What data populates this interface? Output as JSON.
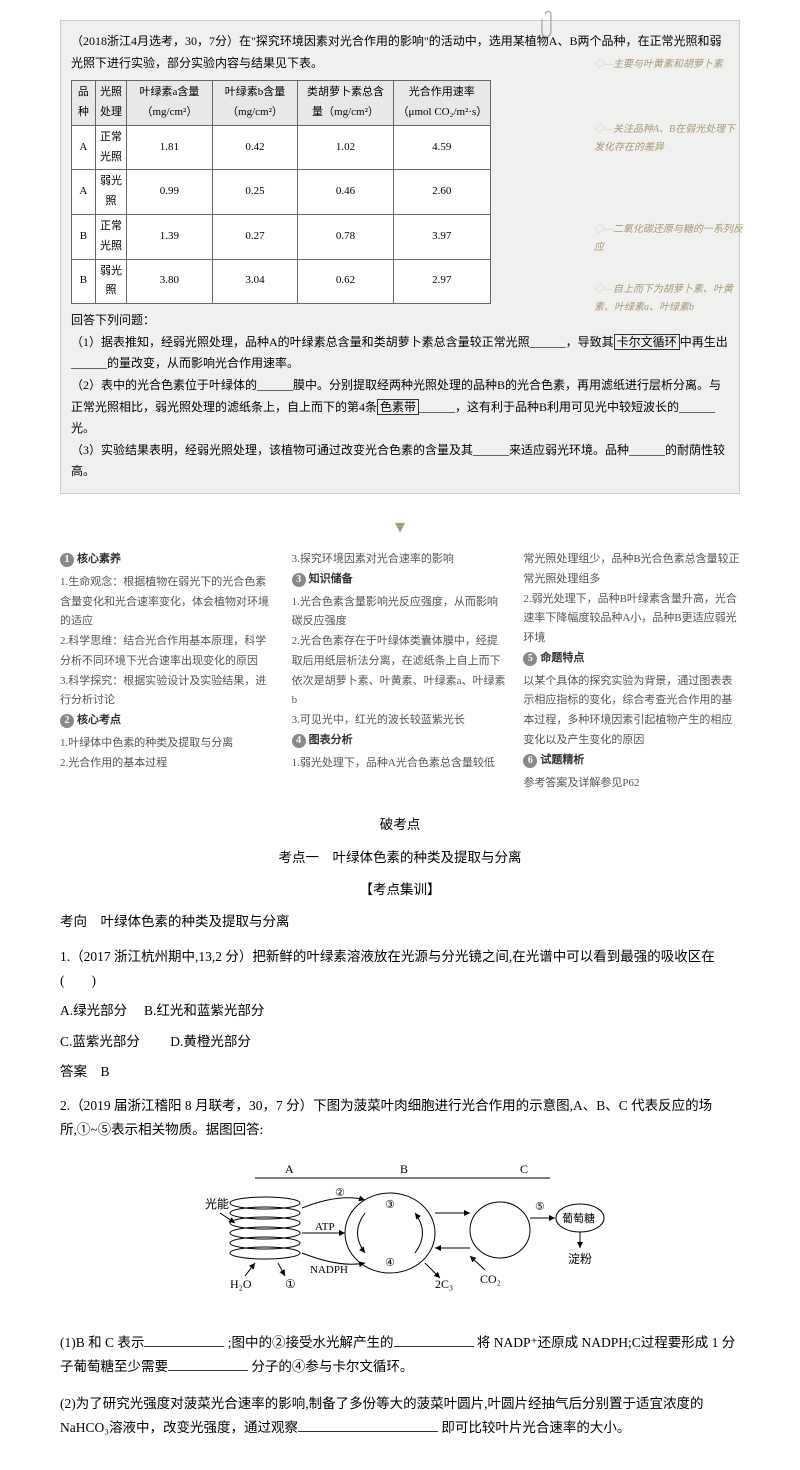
{
  "examBox": {
    "intro": "（2018浙江4月选考，30，7分）在\"探究环境因素对光合作用的影响\"的活动中，选用某植物A、B两个品种，在正常光照和弱光照下进行实验，部分实验内容与结果见下表。",
    "table": {
      "headers": [
        "品种",
        "光照处理",
        "叶绿素a含量（mg/cm²）",
        "叶绿素b含量（mg/cm²）",
        "类胡萝卜素总含量（mg/cm²）",
        "光合作用速率（μmol CO₂/m²·s）"
      ],
      "rows": [
        [
          "A",
          "正常光照",
          "1.81",
          "0.42",
          "1.02",
          "4.59"
        ],
        [
          "A",
          "弱光照",
          "0.99",
          "0.25",
          "0.46",
          "2.60"
        ],
        [
          "B",
          "正常光照",
          "1.39",
          "0.27",
          "0.78",
          "3.97"
        ],
        [
          "B",
          "弱光照",
          "3.80",
          "3.04",
          "0.62",
          "2.97"
        ]
      ]
    },
    "qHeader": "回答下列问题：",
    "q1": "（1）据表推知，经弱光照处理，品种A的叶绿素总含量和类胡萝卜素总含量较正常光照______，导致其",
    "q1b": "卡尔文循环",
    "q1c": "中再生出______的量改变，从而影响光合作用速率。",
    "q2": "（2）表中的光合色素位于叶绿体的______膜中。分别提取经两种光照处理的品种B的光合色素，再用滤纸进行层析分离。与正常光照相比，弱光照处理的滤纸条上，自上而下的第4条",
    "q2b": "色素带",
    "q2c": "______，这有利于品种B利用可见光中较短波长的______光。",
    "q3": "（3）实验结果表明，经弱光照处理，该植物可通过改变光合色素的含量及其______来适应弱光环境。品种______的耐荫性较高。"
  },
  "annotations": {
    "a1": "主要与叶黄素和胡萝卜素",
    "a2": "关注品种A、B在弱光处理下发化存在的差异",
    "a3": "二氧化碳还原与糖的一系列反应",
    "a4": "自上而下为胡萝卜素、叶黄素、叶绿素a、叶绿素b"
  },
  "columns": {
    "col1": {
      "h1": "核心素养",
      "t1": "1.生命观念：根据植物在弱光下的光合色素含量变化和光合速率变化，体会植物对环境的适应\n2.科学思维：结合光合作用基本原理，科学分析不同环境下光合速率出现变化的原因\n3.科学探究：根据实验设计及实验结果，进行分析讨论",
      "h2": "核心考点",
      "t2": "1.叶绿体中色素的种类及提取与分离\n2.光合作用的基本过程"
    },
    "col2": {
      "t0": "3.探究环境因素对光合速率的影响",
      "h1": "知识储备",
      "t1": "1.光合色素含量影响光反应强度，从而影响碳反应强度\n2.光合色素存在于叶绿体类囊体膜中，经提取后用纸层析法分离，在滤纸条上自上而下依次是胡萝卜素、叶黄素、叶绿素a、叶绿素b\n3.可见光中，红光的波长较蓝紫光长",
      "h2": "图表分析",
      "t2": "1.弱光处理下，品种A光合色素总含量较低"
    },
    "col3": {
      "t0": "常光照处理组少，品种B光合色素总含量较正常光照处理组多\n2.弱光处理下，品种B叶绿素含量升高，光合速率下降幅度较品种A小，品种B更适应弱光环境",
      "h1": "命题特点",
      "t1": "以某个具体的探究实验为背景，通过图表表示相应指标的变化，综合考查光合作用的基本过程，多种环境因素引起植物产生的相应变化以及产生变化的原因",
      "h2": "试题精析",
      "t2": "参考答案及详解参见P62"
    }
  },
  "mainContent": {
    "title1": "破考点",
    "title2": "考点一　叶绿体色素的种类及提取与分离",
    "title3": "【考点集训】",
    "topic": "考向　叶绿体色素的种类及提取与分离",
    "q1": {
      "stem": "1.（2017 浙江杭州期中,13,2 分）把新鲜的叶绿素溶液放在光源与分光镜之间,在光谱中可以看到最强的吸收区在(　　)",
      "optA": "A.绿光部分",
      "optB": "B.红光和蓝紫光部分",
      "optC": "C.蓝紫光部分",
      "optD": "D.黄橙光部分",
      "answer": "答案　B"
    },
    "q2": {
      "stem": "2.（2019 届浙江稽阳 8 月联考，30，7 分）下图为菠菜叶肉细胞进行光合作用的示意图,A、B、C 代表反应的场所,①~⑤表示相关物质。据图回答:",
      "sub1a": "(1)B 和 C 表示",
      "sub1b": ";图中的②接受水光解产生的",
      "sub1c": "将 NADP⁺还原成 NADPH;C过程要形成 1 分子葡萄糖至少需要",
      "sub1d": "分子的④参与卡尔文循环。",
      "sub2a": "(2)为了研究光强度对菠菜光合速率的影响,制备了多份等大的菠菜叶圆片,叶圆片经抽气后分别置于适宜浓度的 NaHCO₃溶液中，改变光强度，通过观察",
      "sub2b": "即可比较叶片光合速率的大小。"
    }
  },
  "diagram": {
    "labelA": "A",
    "labelB": "B",
    "labelC": "C",
    "light": "光能",
    "h2o": "H₂O",
    "atp": "ATP",
    "nadph": "NADPH",
    "co2": "CO₂",
    "sugar": "葡萄糖",
    "starch": "淀粉",
    "n1": "①",
    "n2": "②",
    "n3": "③",
    "n4": "④",
    "n5": "⑤",
    "c2": "2C₃"
  }
}
